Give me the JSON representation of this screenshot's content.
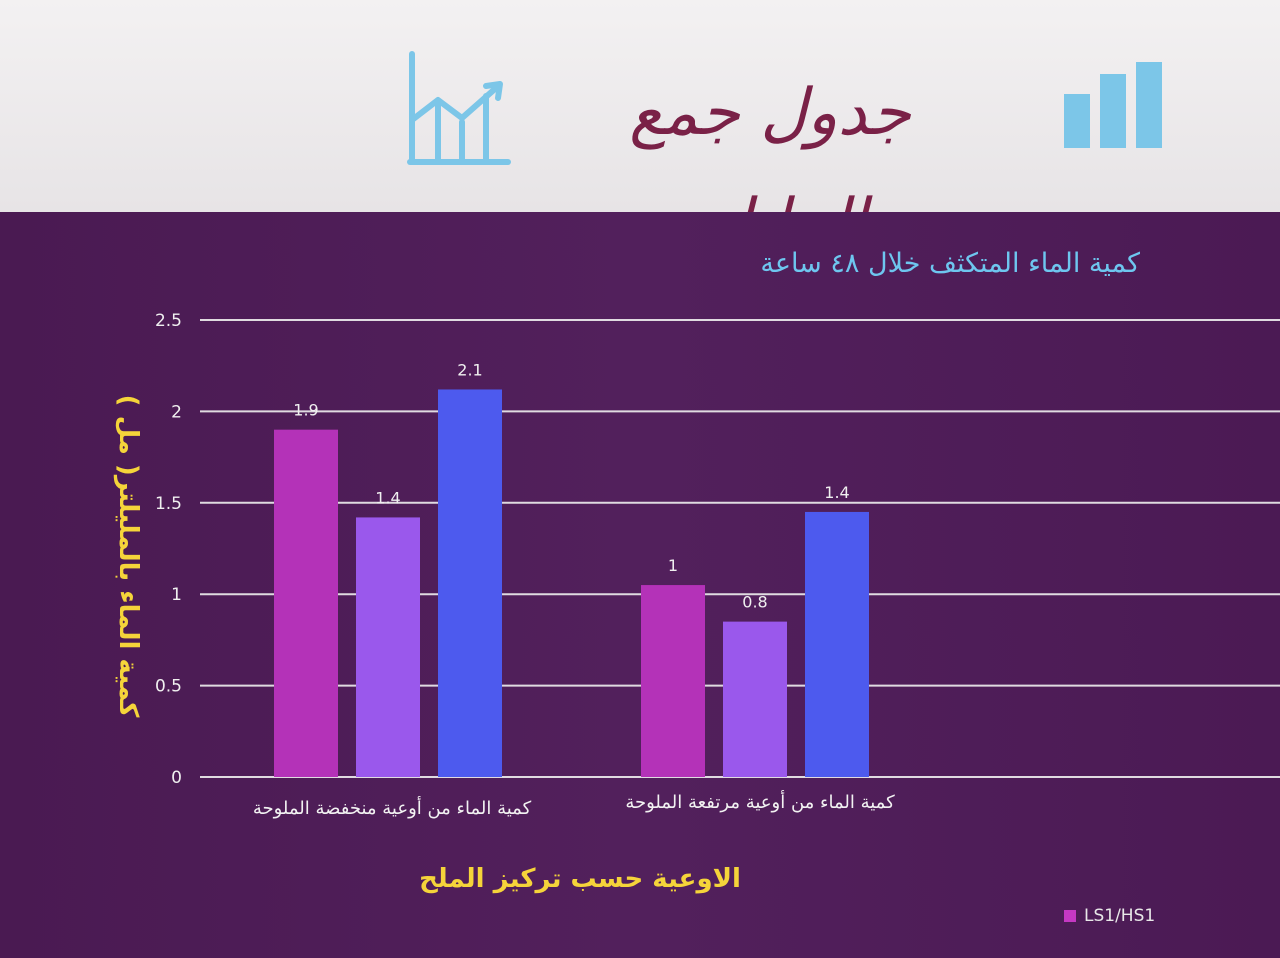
{
  "header": {
    "title": "جدول جمع البيانات",
    "left_icon": "line-chart-up-arrow-icon",
    "right_icon": "bar-chart-icon",
    "icon_color": "#7cc6e8"
  },
  "colors": {
    "background": "#4a1a52",
    "bar_series_1": "#b432b8",
    "bar_series_2": "#9a58ec",
    "bar_series_3": "#4d5aee",
    "grid": "#f0f0f0",
    "axis_title": "#f5d43a",
    "chart_title": "#6ec6ef"
  },
  "chart_data": {
    "type": "bar",
    "title": "كمية الماء المتكثف خلال ٤٨ ساعة",
    "ylabel": "كمية الماء بالمليلتر( مل )",
    "xlabel": "الاوعية حسب تركيز الملح",
    "categories": [
      "كمية الماء من أوعية منخفضة الملوحة",
      "كمية الماء من أوعية مرتفعة الملوحة"
    ],
    "series": [
      {
        "values": [
          1.9,
          1.05
        ],
        "labels": [
          "1.9",
          "1"
        ]
      },
      {
        "values": [
          1.42,
          0.85
        ],
        "labels": [
          "1.4",
          "0.8"
        ]
      },
      {
        "values": [
          2.12,
          1.45
        ],
        "labels": [
          "2.1",
          "1.4"
        ]
      }
    ],
    "yticks": [
      0,
      0.5,
      1,
      1.5,
      2,
      2.5
    ],
    "ytick_labels": [
      "0",
      "0.5",
      "1",
      "1.5",
      "2",
      "2.5"
    ],
    "ylim": [
      0,
      2.5
    ],
    "grid": true,
    "legend": {
      "position": "bottom-right",
      "entries": [
        "LS1/HS1"
      ]
    }
  }
}
